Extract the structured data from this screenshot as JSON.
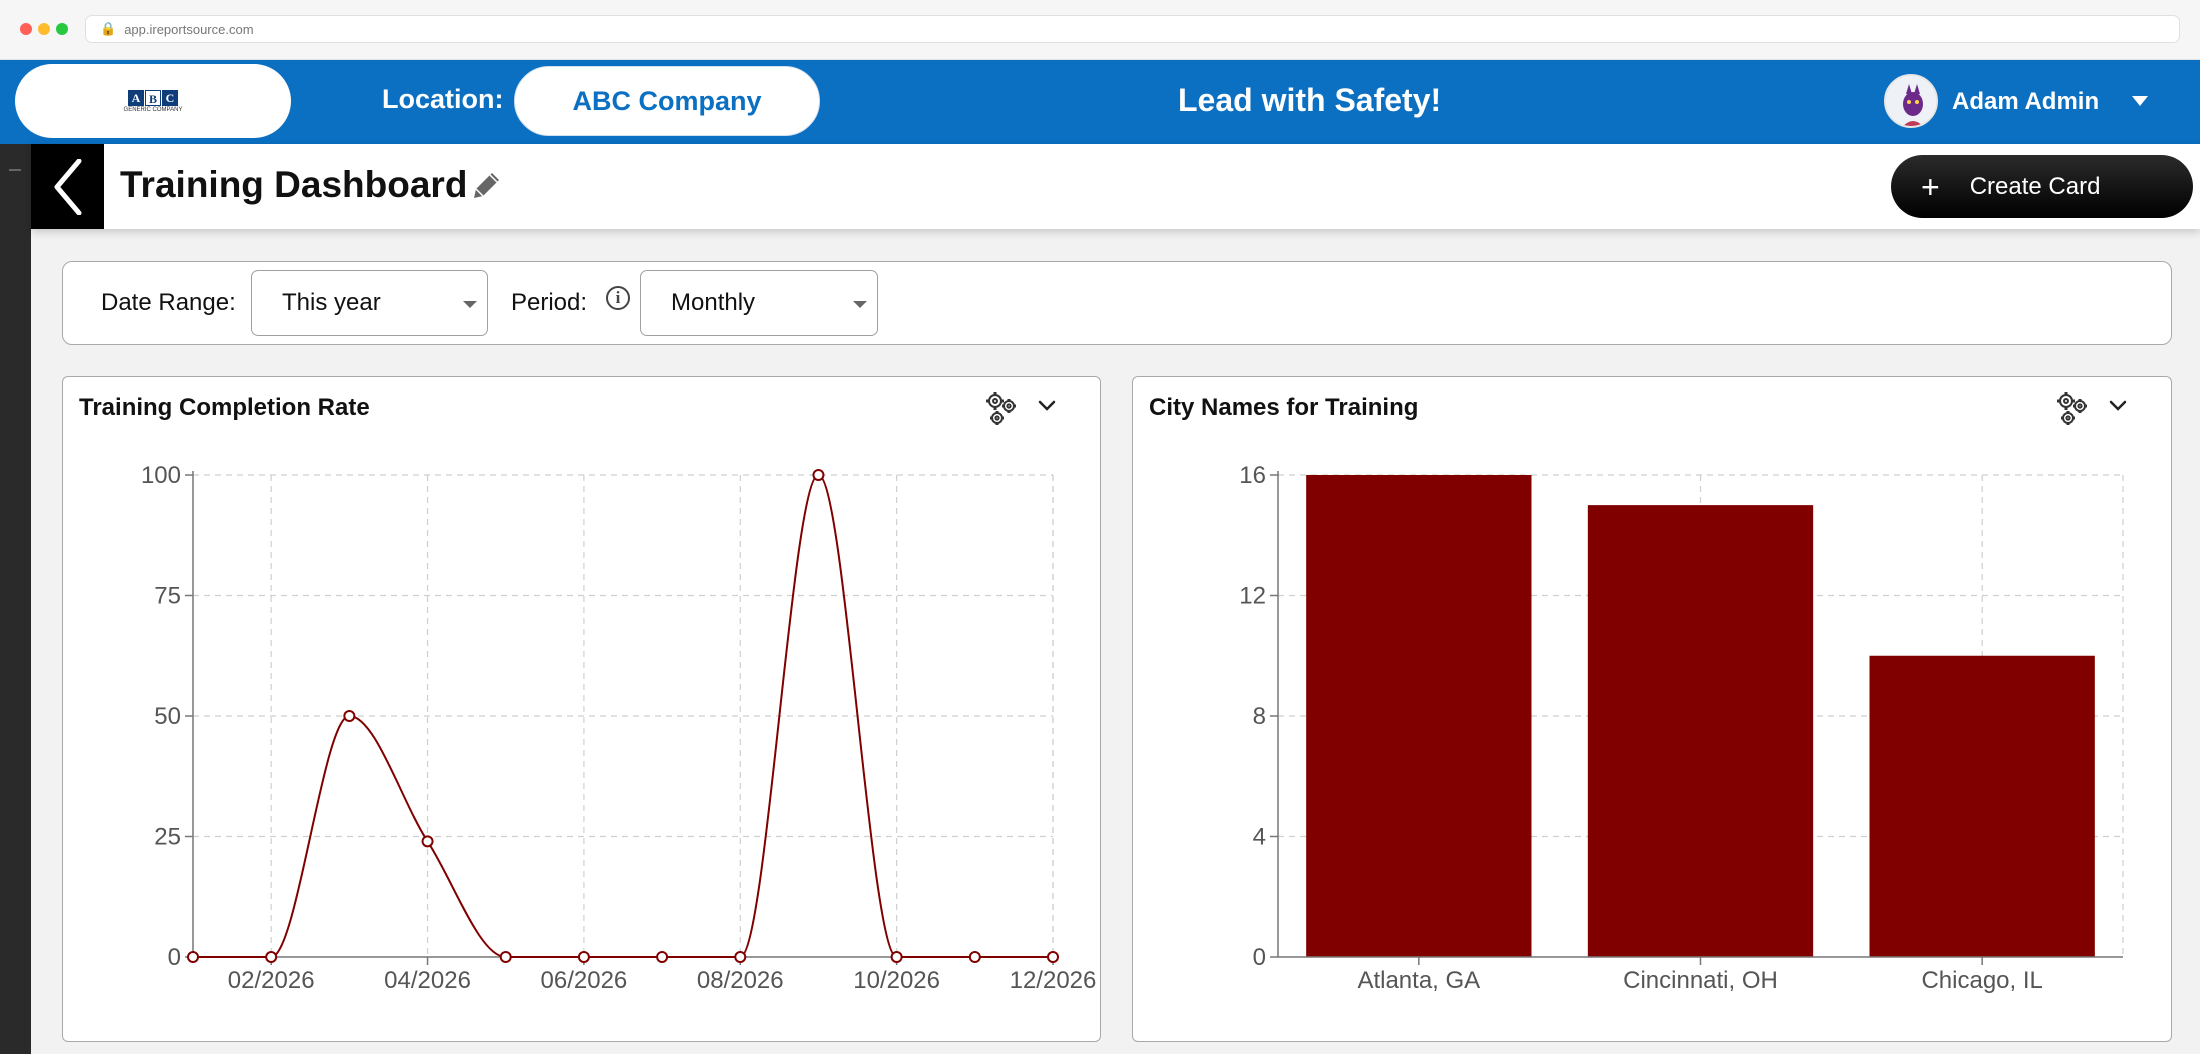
{
  "browser": {
    "url": "app.ireportsource.com"
  },
  "header": {
    "logo": {
      "letters": [
        "A",
        "B",
        "C"
      ],
      "subtitle": "GENERIC COMPANY"
    },
    "location_label": "Location:",
    "location_value": "ABC Company",
    "slogan": "Lead with Safety!",
    "user_name": "Adam Admin"
  },
  "page": {
    "title": "Training Dashboard",
    "create_button": "Create Card"
  },
  "filters": {
    "date_range_label": "Date Range:",
    "date_range_value": "This year",
    "period_label": "Period:",
    "period_value": "Monthly"
  },
  "colors": {
    "brand": "#0b6fc2",
    "series": "#800000"
  },
  "cards": {
    "completion": {
      "title": "Training Completion Rate"
    },
    "cities": {
      "title": "City Names for Training"
    }
  },
  "chart_data": [
    {
      "type": "line",
      "title": "Training Completion Rate",
      "x": [
        "01/2026",
        "02/2026",
        "03/2026",
        "04/2026",
        "05/2026",
        "06/2026",
        "07/2026",
        "08/2026",
        "09/2026",
        "10/2026",
        "11/2026",
        "12/2026"
      ],
      "x_tick_labels": [
        "02/2026",
        "04/2026",
        "06/2026",
        "08/2026",
        "10/2026",
        "12/2026"
      ],
      "series": [
        {
          "values": [
            0,
            0,
            50,
            24,
            0,
            0,
            0,
            0,
            100,
            0,
            0,
            0
          ]
        }
      ],
      "yticks": [
        0,
        25,
        50,
        75,
        100
      ],
      "ylim": [
        0,
        100
      ],
      "grid": true
    },
    {
      "type": "bar",
      "title": "City Names for Training",
      "categories": [
        "Atlanta, GA",
        "Cincinnati, OH",
        "Chicago, IL"
      ],
      "values": [
        16,
        15,
        10
      ],
      "yticks": [
        0,
        4,
        8,
        12,
        16
      ],
      "ylim": [
        0,
        16
      ],
      "grid": true
    }
  ]
}
